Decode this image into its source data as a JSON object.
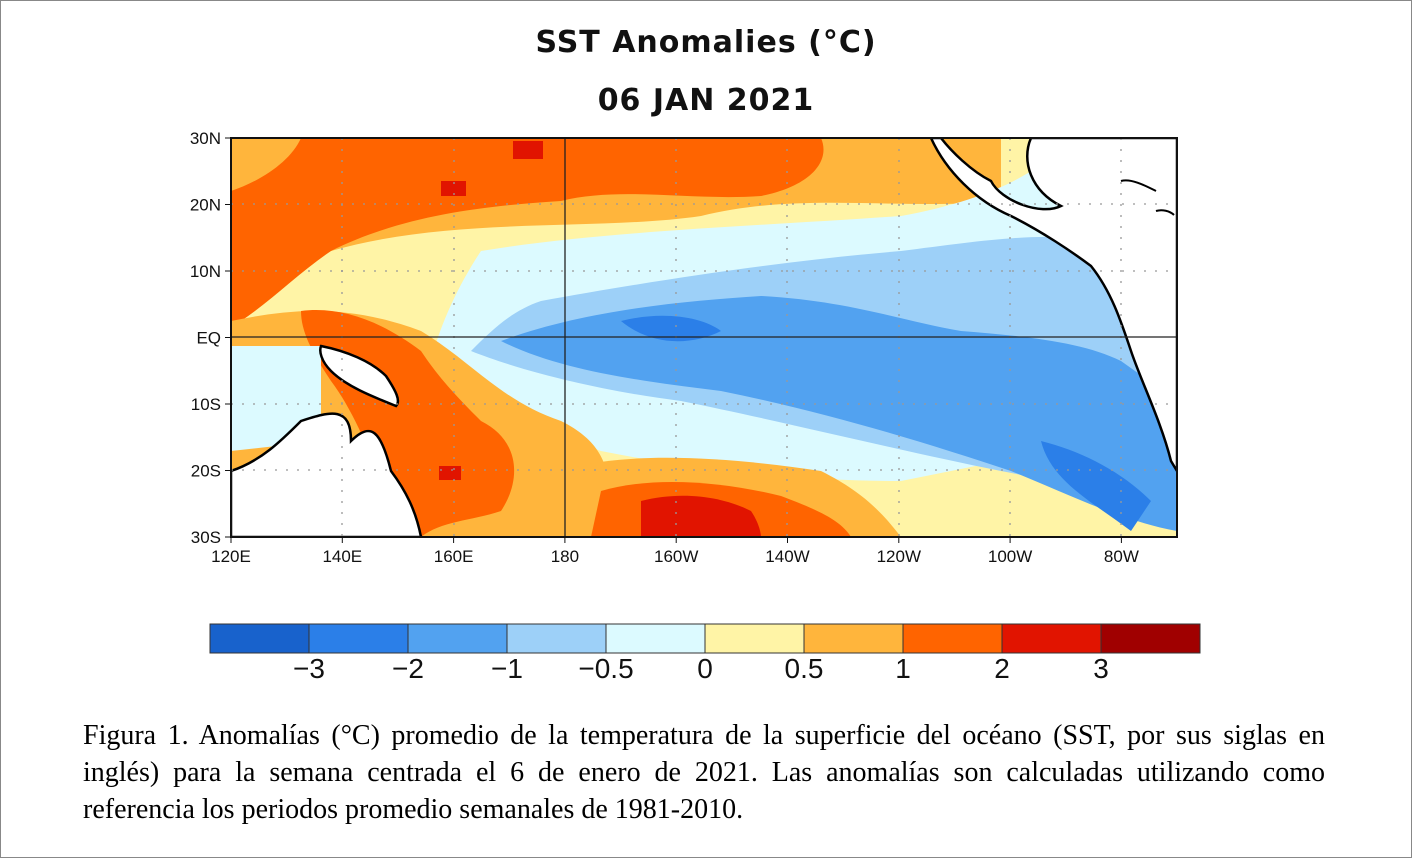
{
  "chart_data": {
    "type": "heatmap",
    "title": "SST Anomalies (°C)",
    "subtitle": "06 JAN 2021",
    "x_ticks": [
      "120E",
      "140E",
      "160E",
      "180",
      "160W",
      "140W",
      "120W",
      "100W",
      "80W"
    ],
    "y_ticks": [
      "30N",
      "20N",
      "10N",
      "EQ",
      "10S",
      "20S",
      "30S"
    ],
    "lon_range": [
      "120E",
      "70W"
    ],
    "lat_range": [
      "30S",
      "30N"
    ],
    "grid": "dotted",
    "colorbar": {
      "labels": [
        "−3",
        "−2",
        "−1",
        "−0.5",
        "0",
        "0.5",
        "1",
        "2",
        "3"
      ],
      "colors": [
        "#1862cc",
        "#2b7fe8",
        "#52a2f0",
        "#9dd0f8",
        "#dcfaff",
        "#fff4a6",
        "#ffb53c",
        "#ff6400",
        "#e11400",
        "#a00000"
      ]
    }
  },
  "caption": "Figura 1. Anomalías (°C) promedio de la temperatura de la superficie del océano (SST, por sus siglas en inglés) para la semana centrada el 6 de enero de 2021. Las anomalías son calculadas utilizando  como referencia los periodos promedio semanales de 1981-2010."
}
